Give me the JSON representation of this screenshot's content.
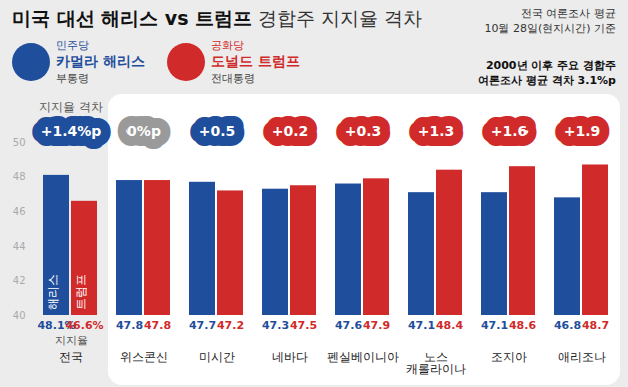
{
  "chart_data": {
    "type": "bar",
    "title": "미국 대선 해리스 vs 트럼프",
    "subtitle": "경합주 지지율 격차",
    "source_note": [
      "전국 여론조사 평균",
      "10월 28일(현지시간) 기준"
    ],
    "note": [
      "2000년 이후 주요 경합주",
      "여론조사 평균 격차 3.1%p"
    ],
    "categories": [
      "전국",
      "위스콘신",
      "미시간",
      "네바다",
      "펜실베이니아",
      "노스\n캐롤라이나",
      "조지아",
      "애리조나"
    ],
    "series": [
      {
        "name": "카멀라 해리스",
        "label": "해리스",
        "party": "민주당",
        "role": "부통령",
        "color": "#1f4e9c",
        "values": [
          48.1,
          47.8,
          47.7,
          47.3,
          47.6,
          47.1,
          47.1,
          46.8
        ],
        "value_labels": [
          "48.1%",
          "47.8",
          "47.7",
          "47.3",
          "47.6",
          "47.1",
          "47.1",
          "46.8"
        ]
      },
      {
        "name": "도널드 트럼프",
        "label": "트럼프",
        "party": "공화당",
        "role": "전대통령",
        "color": "#d12a2a",
        "values": [
          46.6,
          47.8,
          47.2,
          47.5,
          47.9,
          48.4,
          48.6,
          48.7
        ],
        "value_labels": [
          "46.6%",
          "47.8",
          "47.2",
          "47.5",
          "47.9",
          "48.4",
          "48.6",
          "48.7"
        ]
      }
    ],
    "gaps": {
      "title": "지지율 격차",
      "values": [
        1.4,
        0,
        0.5,
        0.2,
        0.3,
        1.3,
        1.6,
        1.9
      ],
      "value_labels": [
        "+1.4%p",
        "0%p",
        "+0.5",
        "+0.2",
        "+0.3",
        "+1.3",
        "+1.6",
        "+1.9"
      ],
      "colors": [
        "#1f4e9c",
        "#9a9a9a",
        "#1f4e9c",
        "#d12a2a",
        "#d12a2a",
        "#d12a2a",
        "#d12a2a",
        "#d12a2a"
      ]
    },
    "value_axis_label": "지지율",
    "ylim": [
      40,
      50
    ],
    "yticks": [
      40,
      42,
      44,
      46,
      48,
      50
    ],
    "grid": false,
    "data_labels": true
  }
}
